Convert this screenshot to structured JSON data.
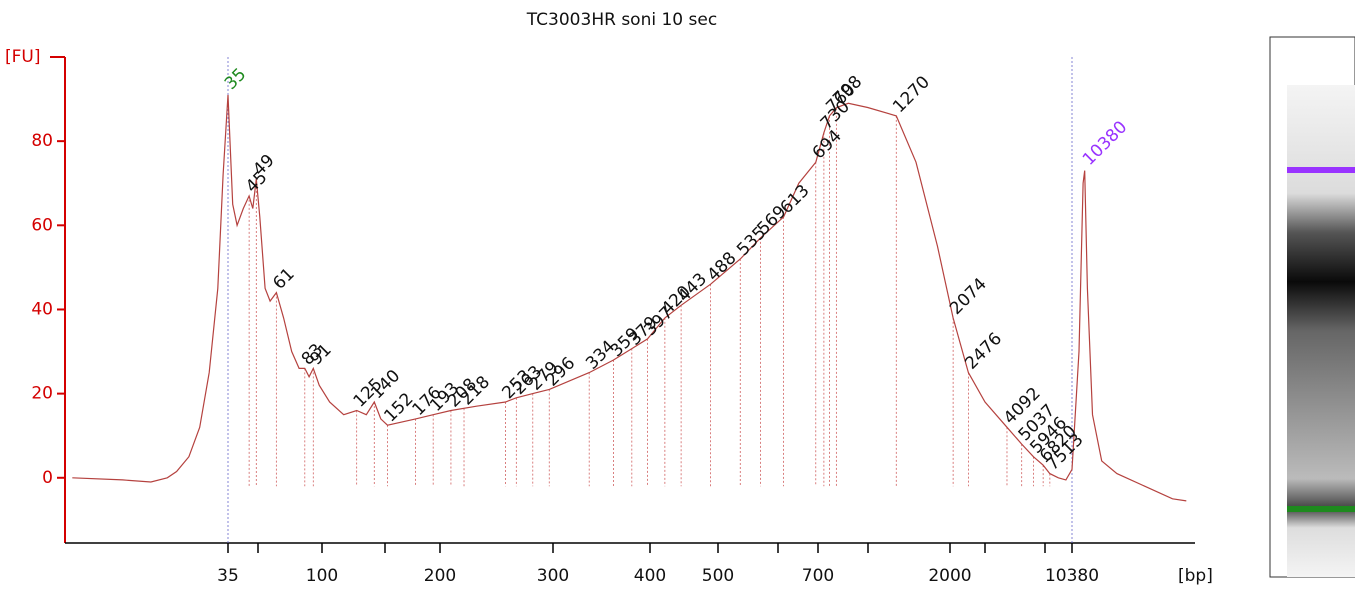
{
  "chart_data": {
    "type": "line",
    "title": "TC3003HR soni 10 sec",
    "ylabel": "[FU]",
    "xlabel": "[bp]",
    "color": "#b5423f",
    "axis_color": "#d40000",
    "ylim": [
      -15.5,
      100
    ],
    "yticks": [
      0,
      20,
      40,
      60,
      80
    ],
    "xlim": [
      5.5,
      55000
    ],
    "xticks": [
      35,
      {
        "value": 50,
        "label": null
      },
      100,
      {
        "value": 150,
        "label": null
      },
      200,
      300,
      400,
      500,
      {
        "value": 600,
        "label": null
      },
      700,
      {
        "value": 1000,
        "label": null
      },
      2000,
      {
        "value": 3000,
        "label": null
      },
      {
        "value": 7000,
        "label": null
      },
      10380
    ],
    "x": [
      5.5,
      10,
      14,
      17,
      19,
      22,
      25,
      28,
      31,
      33,
      35,
      37,
      39,
      42,
      45,
      47,
      49,
      51,
      54,
      57,
      61,
      66,
      72,
      78,
      83,
      87,
      91,
      97,
      105,
      115,
      125,
      133,
      140,
      146,
      152,
      176,
      193,
      208,
      228,
      253,
      263,
      279,
      296,
      334,
      359,
      397,
      420,
      443,
      488,
      535,
      569,
      613,
      650,
      694,
      730,
      760,
      800,
      869,
      998,
      1270,
      1500,
      1800,
      2074,
      2476,
      3000,
      4092,
      5037,
      5946,
      6820,
      7513,
      8500,
      9500,
      10380,
      11500,
      12200,
      12500,
      13000,
      14000,
      16000,
      20000,
      30000,
      45000,
      55000
    ],
    "values": [
      0,
      -0.5,
      -1,
      0,
      1.5,
      5,
      12,
      25,
      45,
      72,
      91,
      65,
      60,
      64,
      67,
      64,
      71,
      62,
      45,
      42,
      44,
      38,
      30,
      26,
      26,
      24,
      26,
      22,
      18,
      15,
      16,
      15,
      18,
      14,
      12.5,
      14,
      15,
      16,
      17,
      18,
      19,
      20,
      21,
      25,
      28,
      33,
      38,
      41,
      46,
      52,
      57,
      62,
      70,
      75,
      82,
      86,
      88,
      89,
      88,
      86,
      75,
      55,
      38,
      25,
      18,
      12,
      8,
      5,
      3,
      1,
      0,
      -0.5,
      2,
      30,
      70,
      73,
      45,
      15,
      4,
      1,
      -2,
      -5,
      -5.5
    ],
    "peaks": [
      45,
      49,
      61,
      83,
      91,
      125,
      140,
      152,
      176,
      193,
      208,
      218,
      253,
      263,
      279,
      296,
      334,
      359,
      379,
      397,
      420,
      443,
      488,
      535,
      569,
      613,
      694,
      730,
      760,
      798,
      1270,
      2074,
      2476,
      4092,
      5037,
      5946,
      6820,
      7513
    ],
    "lower_marker": {
      "value": 35,
      "color": "#1e8a1e"
    },
    "upper_marker": {
      "value": 10380,
      "color": "#9933ff"
    }
  }
}
